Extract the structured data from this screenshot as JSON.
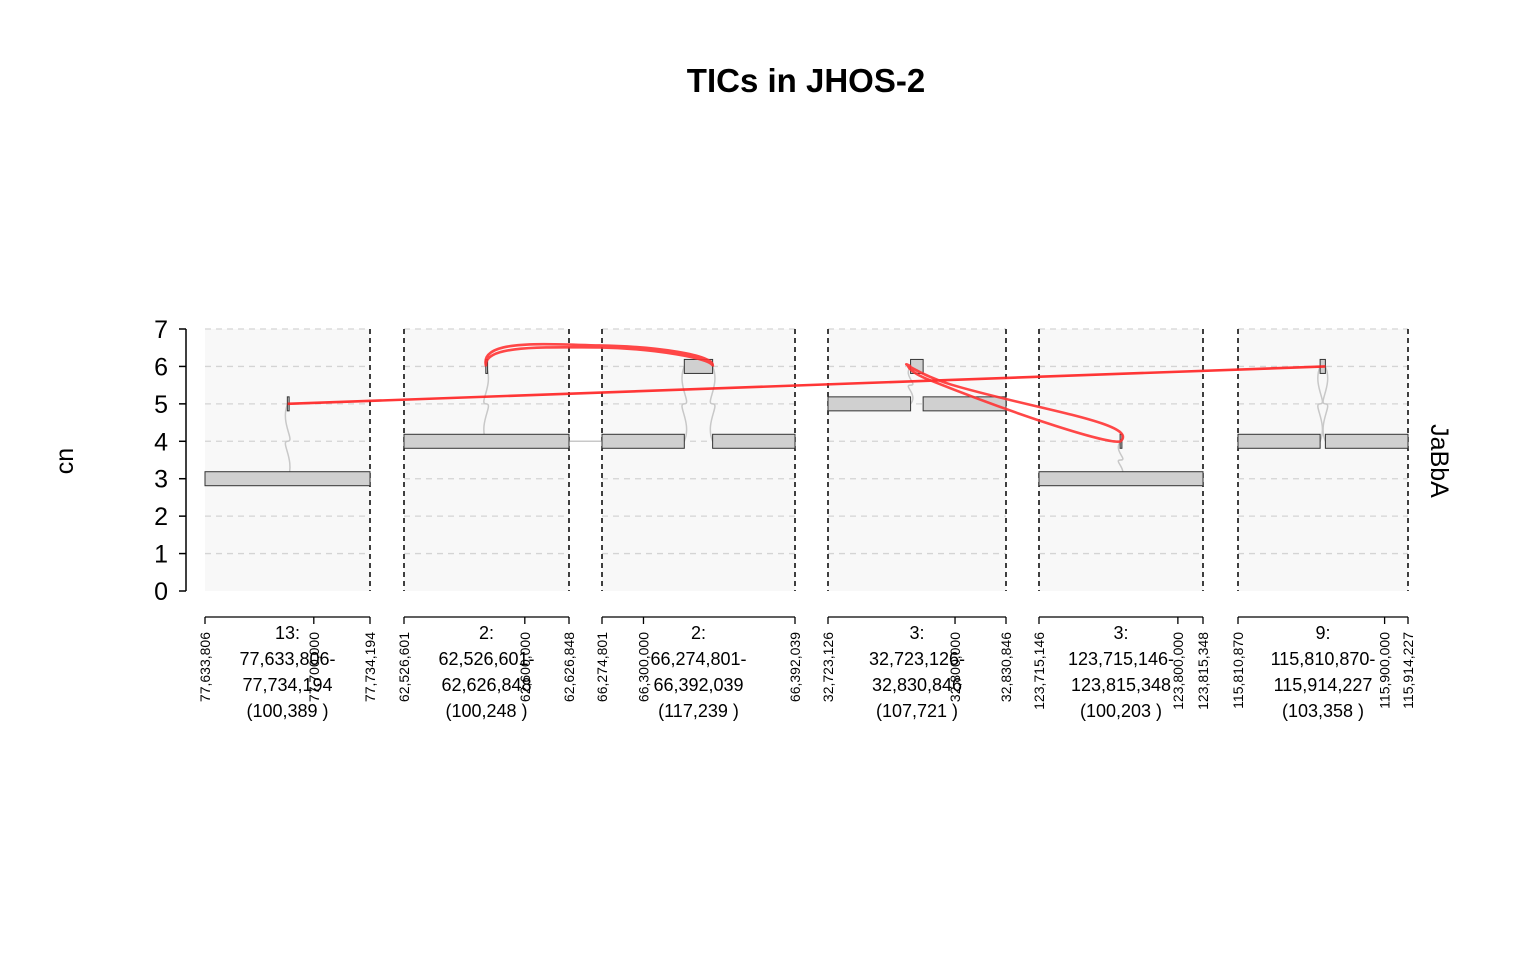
{
  "chart_data": {
    "type": "genome-graph",
    "title": "TICs in JHOS-2",
    "ylabel": "cn",
    "track_label": "JaBbA",
    "ylim": [
      0,
      7
    ],
    "yticks": [
      0,
      1,
      2,
      3,
      4,
      5,
      6,
      7
    ],
    "grid": true,
    "windows": [
      {
        "label_lines": [
          "13:",
          "77,633,806-",
          "77,734,194",
          "(100,389 )"
        ],
        "start": 77633806,
        "end": 77734194,
        "ticks": [
          "77,633,806",
          "77,700,000",
          "77,734,194"
        ],
        "tick_values": [
          77633806,
          77700000,
          77734194
        ]
      },
      {
        "label_lines": [
          "2:",
          "62,526,601-",
          "62,626,848",
          "(100,248 )"
        ],
        "start": 62526601,
        "end": 62626848,
        "ticks": [
          "62,526,601",
          "62,600,000",
          "62,626,848"
        ],
        "tick_values": [
          62526601,
          62600000,
          62626848
        ]
      },
      {
        "label_lines": [
          "2:",
          "66,274,801-",
          "66,392,039",
          "(117,239 )"
        ],
        "start": 66274801,
        "end": 66392039,
        "ticks": [
          "66,274,801",
          "66,300,000",
          "66,392,039"
        ],
        "tick_values": [
          66274801,
          66300000,
          66392039
        ]
      },
      {
        "label_lines": [
          "3:",
          "32,723,126-",
          "32,830,846",
          "(107,721 )"
        ],
        "start": 32723126,
        "end": 32830846,
        "ticks": [
          "32,723,126",
          "32,800,000",
          "32,830,846"
        ],
        "tick_values": [
          32723126,
          32800000,
          32830846
        ]
      },
      {
        "label_lines": [
          "3:",
          "123,715,146-",
          "123,815,348",
          "(100,203 )"
        ],
        "start": 123715146,
        "end": 123815348,
        "ticks": [
          "123,715,146",
          "123,800,000",
          "123,815,348"
        ],
        "tick_values": [
          123715146,
          123800000,
          123815348
        ]
      },
      {
        "label_lines": [
          "9:",
          "115,810,870-",
          "115,914,227",
          "(103,358 )"
        ],
        "start": 115810870,
        "end": 115914227,
        "ticks": [
          "115,810,870",
          "115,900,000",
          "115,914,227"
        ],
        "tick_values": [
          115810870,
          115900000,
          115914227
        ]
      }
    ],
    "segments": [
      {
        "window": 0,
        "start": 77633806,
        "end": 77734194,
        "cn": 3
      },
      {
        "window": 0,
        "start": 77683900,
        "end": 77684300,
        "cn": 5
      },
      {
        "window": 1,
        "start": 62526601,
        "end": 62626848,
        "cn": 4
      },
      {
        "window": 1,
        "start": 62576300,
        "end": 62576700,
        "cn": 6
      },
      {
        "window": 2,
        "start": 66274801,
        "end": 66324800,
        "cn": 4
      },
      {
        "window": 2,
        "start": 66324800,
        "end": 66342000,
        "cn": 6
      },
      {
        "window": 2,
        "start": 66342000,
        "end": 66392039,
        "cn": 4
      },
      {
        "window": 3,
        "start": 32723126,
        "end": 32773100,
        "cn": 5
      },
      {
        "window": 3,
        "start": 32773100,
        "end": 32780700,
        "cn": 6
      },
      {
        "window": 3,
        "start": 32780700,
        "end": 32830846,
        "cn": 5
      },
      {
        "window": 4,
        "start": 123715146,
        "end": 123815348,
        "cn": 3
      },
      {
        "window": 4,
        "start": 123764700,
        "end": 123765100,
        "cn": 4
      },
      {
        "window": 5,
        "start": 115810870,
        "end": 115860800,
        "cn": 4
      },
      {
        "window": 5,
        "start": 115860800,
        "end": 115864000,
        "cn": 6
      },
      {
        "window": 5,
        "start": 115864000,
        "end": 115914227,
        "cn": 4
      }
    ],
    "ref_edges": [
      {
        "from": [
          0,
          77684100,
          3
        ],
        "to": [
          0,
          77684100,
          5
        ]
      },
      {
        "from": [
          1,
          62576500,
          6
        ],
        "to": [
          1,
          62576500,
          4
        ]
      },
      {
        "from": [
          1,
          62626848,
          4
        ],
        "to": [
          2,
          66274801,
          4
        ]
      },
      {
        "from": [
          2,
          66324800,
          4
        ],
        "to": [
          2,
          66324800,
          6
        ]
      },
      {
        "from": [
          2,
          66342000,
          6
        ],
        "to": [
          2,
          66342000,
          4
        ]
      },
      {
        "from": [
          3,
          32773100,
          5
        ],
        "to": [
          3,
          32773100,
          6
        ]
      },
      {
        "from": [
          4,
          123765000,
          3
        ],
        "to": [
          4,
          123765000,
          4
        ]
      },
      {
        "from": [
          5,
          115860800,
          4
        ],
        "to": [
          5,
          115860800,
          6
        ]
      },
      {
        "from": [
          5,
          115864000,
          6
        ],
        "to": [
          5,
          115864000,
          4
        ]
      }
    ],
    "alt_edges": [
      {
        "type": "straight",
        "from": [
          0,
          77684100,
          5
        ],
        "to": [
          5,
          115864000,
          6
        ],
        "color": "#ff2020"
      },
      {
        "type": "arc",
        "from": [
          1,
          62576500,
          6
        ],
        "to": [
          2,
          66342000,
          6
        ],
        "color": "#ff3333"
      },
      {
        "type": "loop",
        "from": [
          3,
          32773100,
          6
        ],
        "to": [
          4,
          123765000,
          4
        ],
        "color": "#ff3333"
      }
    ]
  }
}
